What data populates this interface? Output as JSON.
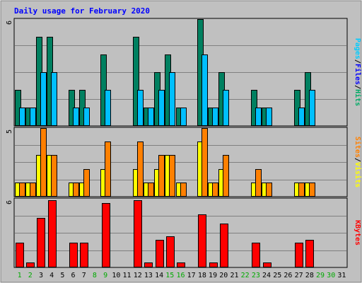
{
  "chart_data": {
    "type": "bar",
    "title": "Daily usage for February 2020",
    "categories": [
      "1",
      "2",
      "3",
      "4",
      "5",
      "6",
      "7",
      "8",
      "9",
      "10",
      "11",
      "12",
      "13",
      "14",
      "15",
      "16",
      "17",
      "18",
      "19",
      "20",
      "21",
      "22",
      "23",
      "24",
      "25",
      "26",
      "27",
      "28",
      "29",
      "30",
      "31"
    ],
    "weekend_days": [
      "1",
      "2",
      "8",
      "9",
      "15",
      "16",
      "22",
      "23",
      "29",
      "30"
    ],
    "panels": [
      {
        "id": "pages-files-hits",
        "max_label": "6",
        "ylim": [
          0,
          6
        ],
        "grid": true,
        "right_labels": [
          {
            "text": "Pages",
            "color": "#00ccff"
          },
          {
            "text": "/",
            "color": "#000000"
          },
          {
            "text": "Files",
            "color": "#0000ff"
          },
          {
            "text": "/",
            "color": "#000000"
          },
          {
            "text": "Hits",
            "color": "#00aa66"
          }
        ],
        "series": [
          {
            "name": "Hits",
            "color": "#008060",
            "values": [
              2,
              1,
              5,
              5,
              0,
              2,
              2,
              0,
              4,
              0,
              0,
              5,
              1,
              3,
              4,
              1,
              0,
              6,
              1,
              3,
              0,
              0,
              2,
              1,
              0,
              0,
              2,
              3,
              0,
              0,
              0
            ]
          },
          {
            "name": "Files",
            "color": "#00bfff",
            "values": [
              1,
              1,
              3,
              3,
              0,
              1,
              1,
              0,
              2,
              0,
              0,
              2,
              1,
              2,
              3,
              1,
              0,
              4,
              1,
              2,
              0,
              0,
              1,
              1,
              0,
              0,
              1,
              2,
              0,
              0,
              0
            ]
          }
        ]
      },
      {
        "id": "visits-sites",
        "max_label": "5",
        "ylim": [
          0,
          5
        ],
        "grid": true,
        "right_labels": [
          {
            "text": "Sites",
            "color": "#ff8000"
          },
          {
            "text": "/",
            "color": "#000000"
          },
          {
            "text": "Visits",
            "color": "#ffff00"
          }
        ],
        "series": [
          {
            "name": "Visits",
            "color": "#ffff00",
            "values": [
              1,
              1,
              3,
              3,
              0,
              1,
              1,
              0,
              2,
              0,
              0,
              2,
              1,
              2,
              3,
              1,
              0,
              4,
              1,
              2,
              0,
              0,
              1,
              1,
              0,
              0,
              1,
              1,
              0,
              0,
              0
            ]
          },
          {
            "name": "Sites",
            "color": "#ff8000",
            "values": [
              1,
              1,
              5,
              3,
              0,
              1,
              2,
              0,
              4,
              0,
              0,
              4,
              1,
              3,
              3,
              1,
              0,
              5,
              1,
              3,
              0,
              0,
              2,
              1,
              0,
              0,
              1,
              1,
              0,
              0,
              0
            ]
          }
        ]
      },
      {
        "id": "kbytes",
        "max_label": "6",
        "ylim": [
          0,
          6
        ],
        "grid": true,
        "right_labels": [
          {
            "text": "KBytes",
            "color": "#ff0000"
          }
        ],
        "series": [
          {
            "name": "KBytes",
            "color": "#ff0000",
            "values": [
              2.1,
              0.4,
              4.3,
              5.9,
              0,
              2.1,
              2.1,
              0,
              5.6,
              0,
              0,
              5.9,
              0.4,
              2.4,
              2.7,
              0.4,
              0,
              4.6,
              0.4,
              3.8,
              0,
              0,
              2.1,
              0.4,
              0,
              0,
              2.1,
              2.4,
              0,
              0,
              0
            ]
          }
        ]
      }
    ]
  },
  "colors": {
    "page_bg": "#ffffff",
    "frame_bg": "#c0c0c0",
    "plot_bg": "#c0c0c0",
    "grid": "#808080",
    "title": "#0000ff",
    "weekday_label": "#000000",
    "weekend_label": "#00aa00"
  }
}
